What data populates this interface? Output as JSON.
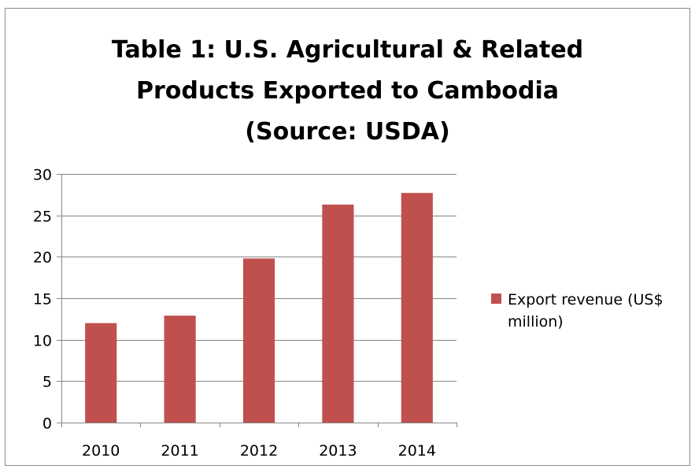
{
  "colors": {
    "bar": "#c0504d",
    "grid": "#868686",
    "axis": "#868686",
    "frame": "#8a8a8a",
    "text": "#000000"
  },
  "chart_data": {
    "type": "bar",
    "title_lines": [
      "Table 1: U.S. Agricultural & Related",
      "Products Exported to Cambodia",
      "(Source: USDA)"
    ],
    "title": "Table 1: U.S. Agricultural & Related Products Exported to Cambodia (Source: USDA)",
    "categories": [
      "2010",
      "2011",
      "2012",
      "2013",
      "2014"
    ],
    "series": [
      {
        "name": "Export revenue (US$ million)",
        "values": [
          12.0,
          12.9,
          19.8,
          26.3,
          27.7
        ]
      }
    ],
    "y_ticks": [
      "0",
      "5",
      "10",
      "15",
      "20",
      "25",
      "30"
    ],
    "ylim": [
      0,
      30
    ],
    "xlabel": "",
    "ylabel": "",
    "grid": true,
    "legend_position": "right"
  }
}
